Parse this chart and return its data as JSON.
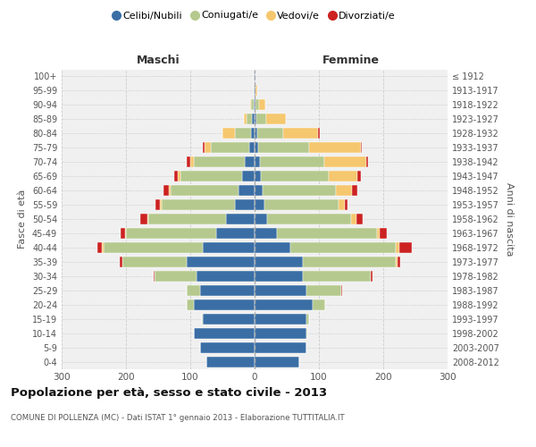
{
  "age_groups": [
    "100+",
    "95-99",
    "90-94",
    "85-89",
    "80-84",
    "75-79",
    "70-74",
    "65-69",
    "60-64",
    "55-59",
    "50-54",
    "45-49",
    "40-44",
    "35-39",
    "30-34",
    "25-29",
    "20-24",
    "15-19",
    "10-14",
    "5-9",
    "0-4"
  ],
  "birth_years": [
    "≤ 1912",
    "1913-1917",
    "1918-1922",
    "1923-1927",
    "1928-1932",
    "1933-1937",
    "1938-1942",
    "1943-1947",
    "1948-1952",
    "1953-1957",
    "1958-1962",
    "1963-1967",
    "1968-1972",
    "1973-1977",
    "1978-1982",
    "1983-1987",
    "1988-1992",
    "1993-1997",
    "1998-2002",
    "2003-2007",
    "2008-2012"
  ],
  "colors": {
    "celibi": "#3a6ea5",
    "coniugati": "#b5c98e",
    "vedovi": "#f5c76e",
    "divorziati": "#cc2222"
  },
  "maschi": {
    "celibi": [
      1,
      1,
      2,
      4,
      5,
      8,
      15,
      20,
      25,
      30,
      45,
      60,
      80,
      105,
      90,
      85,
      95,
      80,
      95,
      85,
      75
    ],
    "coniugati": [
      0,
      1,
      3,
      8,
      25,
      60,
      80,
      95,
      105,
      115,
      120,
      140,
      155,
      100,
      65,
      20,
      10,
      2,
      0,
      0,
      0
    ],
    "vedovi": [
      0,
      0,
      2,
      5,
      20,
      10,
      5,
      5,
      4,
      2,
      1,
      1,
      2,
      0,
      0,
      0,
      0,
      0,
      0,
      0,
      0
    ],
    "divorziati": [
      0,
      0,
      0,
      0,
      0,
      3,
      5,
      5,
      8,
      7,
      12,
      8,
      8,
      5,
      2,
      1,
      0,
      0,
      0,
      0,
      0
    ]
  },
  "femmine": {
    "celibi": [
      1,
      1,
      2,
      3,
      4,
      5,
      8,
      10,
      12,
      15,
      20,
      35,
      55,
      75,
      75,
      80,
      90,
      80,
      80,
      80,
      70
    ],
    "coniugati": [
      0,
      1,
      5,
      15,
      40,
      80,
      100,
      105,
      115,
      115,
      130,
      155,
      165,
      145,
      105,
      55,
      20,
      5,
      2,
      0,
      0
    ],
    "vedovi": [
      1,
      2,
      10,
      30,
      55,
      80,
      65,
      45,
      25,
      10,
      8,
      5,
      5,
      2,
      1,
      0,
      0,
      0,
      0,
      0,
      0
    ],
    "divorziati": [
      0,
      0,
      0,
      1,
      2,
      2,
      3,
      5,
      8,
      5,
      10,
      10,
      20,
      5,
      3,
      1,
      0,
      0,
      0,
      0,
      0
    ]
  },
  "title": "Popolazione per età, sesso e stato civile - 2013",
  "subtitle": "COMUNE DI POLLENZA (MC) - Dati ISTAT 1° gennaio 2013 - Elaborazione TUTTITALIA.IT",
  "ylabel_left": "Fasce di età",
  "ylabel_right": "Anni di nascita",
  "xlabel_maschi": "Maschi",
  "xlabel_femmine": "Femmine",
  "legend_labels": [
    "Celibi/Nubili",
    "Coniugati/e",
    "Vedovi/e",
    "Divorziati/e"
  ],
  "xlim": 300,
  "bg_color": "#ffffff",
  "plot_bg": "#f0f0f0",
  "grid_color": "#cccccc",
  "bar_height": 0.75
}
